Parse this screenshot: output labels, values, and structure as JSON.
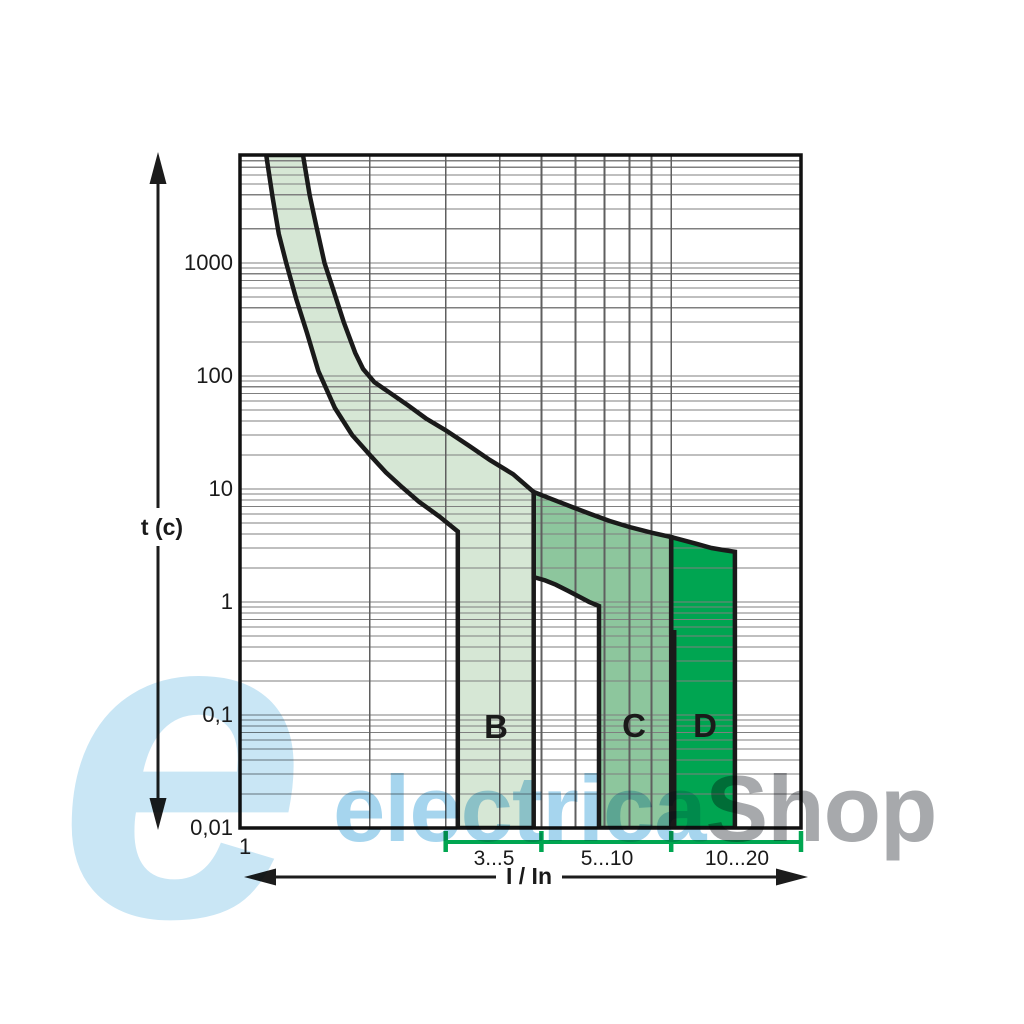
{
  "labels": {
    "y_axis_title": "t (c)",
    "x_axis_title": "I / In",
    "x_origin_label": "1"
  },
  "watermark": {
    "logo_letter": "e",
    "brand_left": "electrica",
    "brand_right": "Shop",
    "logo_color": "#c9e6f5",
    "brand_left_color": "#a6d5ee",
    "brand_right_color": "#a7a9ac"
  },
  "chart_data": {
    "type": "area",
    "xlabel": "I / In",
    "ylabel": "t (c)",
    "x_scale": "log",
    "y_scale": "log",
    "x_log_range": [
      1,
      20
    ],
    "y_log_range": [
      0.01,
      9000
    ],
    "grid": true,
    "x_gridlines": [
      2,
      3,
      4,
      5,
      6,
      7,
      8,
      9,
      10
    ],
    "y_tick_values": [
      1000,
      100,
      10,
      1,
      0.1,
      0.01
    ],
    "y_tick_labels": [
      "1000",
      "100",
      "10",
      "1",
      "0,1",
      "0,01"
    ],
    "line_color": "#1a1a1a",
    "bands": [
      {
        "label": "B",
        "fill": "#d6e7d5",
        "standard_range": [
          3,
          5
        ],
        "drawn_magnetic_range": [
          3.2,
          4.8
        ],
        "vertices": [
          [
            1.15,
            9000
          ],
          [
            1.19,
            3800
          ],
          [
            1.23,
            1800
          ],
          [
            1.28,
            1000
          ],
          [
            1.35,
            480
          ],
          [
            1.43,
            240
          ],
          [
            1.52,
            110
          ],
          [
            1.66,
            52
          ],
          [
            1.82,
            30
          ],
          [
            2.0,
            20
          ],
          [
            2.18,
            14
          ],
          [
            2.38,
            10.3
          ],
          [
            2.6,
            7.7
          ],
          [
            2.9,
            5.7
          ],
          [
            3.2,
            4.2
          ],
          [
            3.2,
            0.01
          ],
          [
            4.8,
            0.01
          ],
          [
            4.8,
            9.4
          ],
          [
            4.3,
            13.5
          ],
          [
            3.8,
            18
          ],
          [
            3.4,
            24
          ],
          [
            3.0,
            33
          ],
          [
            2.7,
            42
          ],
          [
            2.45,
            55
          ],
          [
            2.2,
            73
          ],
          [
            2.05,
            88
          ],
          [
            1.93,
            115
          ],
          [
            1.85,
            160
          ],
          [
            1.74,
            300
          ],
          [
            1.65,
            560
          ],
          [
            1.57,
            1000
          ],
          [
            1.5,
            2200
          ],
          [
            1.45,
            4000
          ],
          [
            1.4,
            9000
          ]
        ]
      },
      {
        "label": "C",
        "fill": "#8dc69d",
        "standard_range": [
          5,
          10
        ],
        "drawn_magnetic_range": [
          6.8,
          10
        ],
        "vertices": [
          [
            4.8,
            9.4
          ],
          [
            5.3,
            8.1
          ],
          [
            5.9,
            6.9
          ],
          [
            6.5,
            6.0
          ],
          [
            7.2,
            5.2
          ],
          [
            8.0,
            4.6
          ],
          [
            9.0,
            4.1
          ],
          [
            10.0,
            3.75
          ],
          [
            10.0,
            0.01
          ],
          [
            6.8,
            0.01
          ],
          [
            6.8,
            0.92
          ],
          [
            6.45,
            1.0
          ],
          [
            6.1,
            1.12
          ],
          [
            5.75,
            1.26
          ],
          [
            5.4,
            1.42
          ],
          [
            5.1,
            1.55
          ],
          [
            4.8,
            1.66
          ]
        ]
      },
      {
        "label": "D",
        "fill": "#00a551",
        "standard_range": [
          10,
          20
        ],
        "drawn_magnetic_range": [
          10,
          14
        ],
        "vertices": [
          [
            10.0,
            3.75
          ],
          [
            10.7,
            3.5
          ],
          [
            11.5,
            3.25
          ],
          [
            12.4,
            3.0
          ],
          [
            13.2,
            2.88
          ],
          [
            14.05,
            2.78
          ],
          [
            14.05,
            0.01
          ],
          [
            10.16,
            0.01
          ],
          [
            10.16,
            0.54
          ],
          [
            10.0,
            0.54
          ]
        ]
      }
    ],
    "bracket": {
      "color": "#00a651",
      "edges": [
        3,
        5,
        10,
        20
      ],
      "labels": [
        "3...5",
        "5...10",
        "10...20"
      ]
    }
  }
}
